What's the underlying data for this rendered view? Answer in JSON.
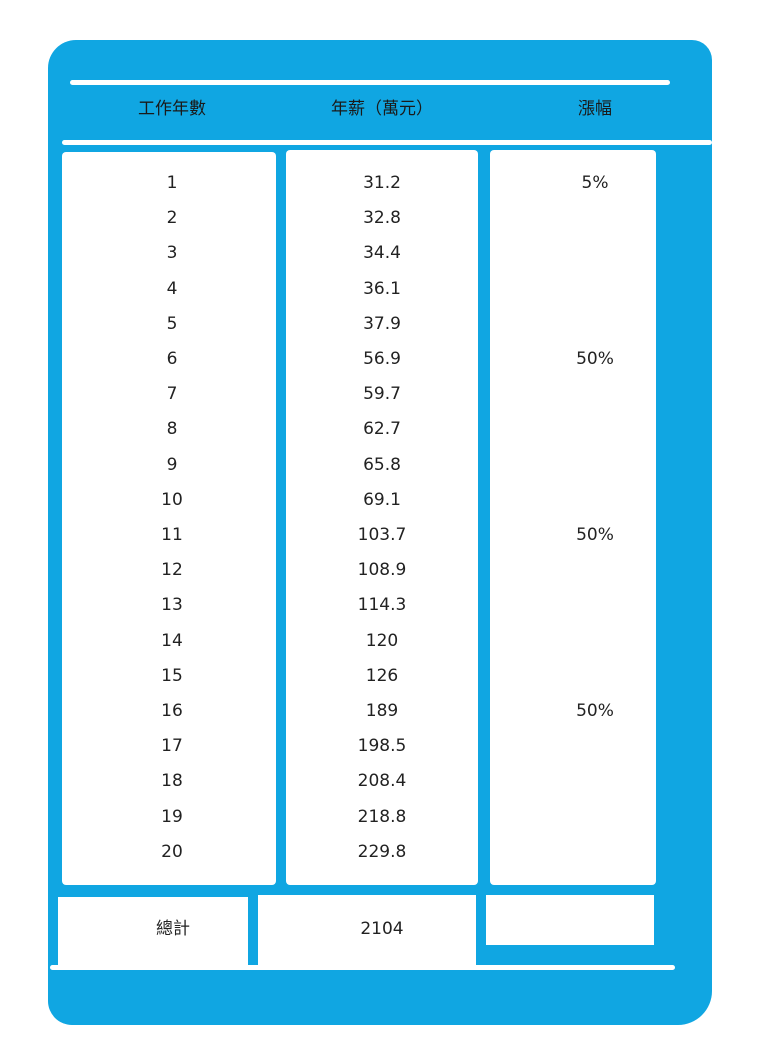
{
  "chart_data": {
    "type": "table",
    "columns": [
      "工作年數",
      "年薪（萬元）",
      "漲幅"
    ],
    "rows": [
      [
        "1",
        "31.2",
        "5%"
      ],
      [
        "2",
        "32.8",
        ""
      ],
      [
        "3",
        "34.4",
        ""
      ],
      [
        "4",
        "36.1",
        ""
      ],
      [
        "5",
        "37.9",
        ""
      ],
      [
        "6",
        "56.9",
        "50%"
      ],
      [
        "7",
        "59.7",
        ""
      ],
      [
        "8",
        "62.7",
        ""
      ],
      [
        "9",
        "65.8",
        ""
      ],
      [
        "10",
        "69.1",
        ""
      ],
      [
        "11",
        "103.7",
        "50%"
      ],
      [
        "12",
        "108.9",
        ""
      ],
      [
        "13",
        "114.3",
        ""
      ],
      [
        "14",
        "120",
        ""
      ],
      [
        "15",
        "126",
        ""
      ],
      [
        "16",
        "189",
        "50%"
      ],
      [
        "17",
        "198.5",
        ""
      ],
      [
        "18",
        "208.4",
        ""
      ],
      [
        "19",
        "218.8",
        ""
      ],
      [
        "20",
        "229.8",
        ""
      ]
    ],
    "total": {
      "label": "總計",
      "value": "2104",
      "increase": ""
    },
    "colors": {
      "frame": "#10a6e2",
      "background": "#ffffff",
      "text": "#222222"
    }
  }
}
